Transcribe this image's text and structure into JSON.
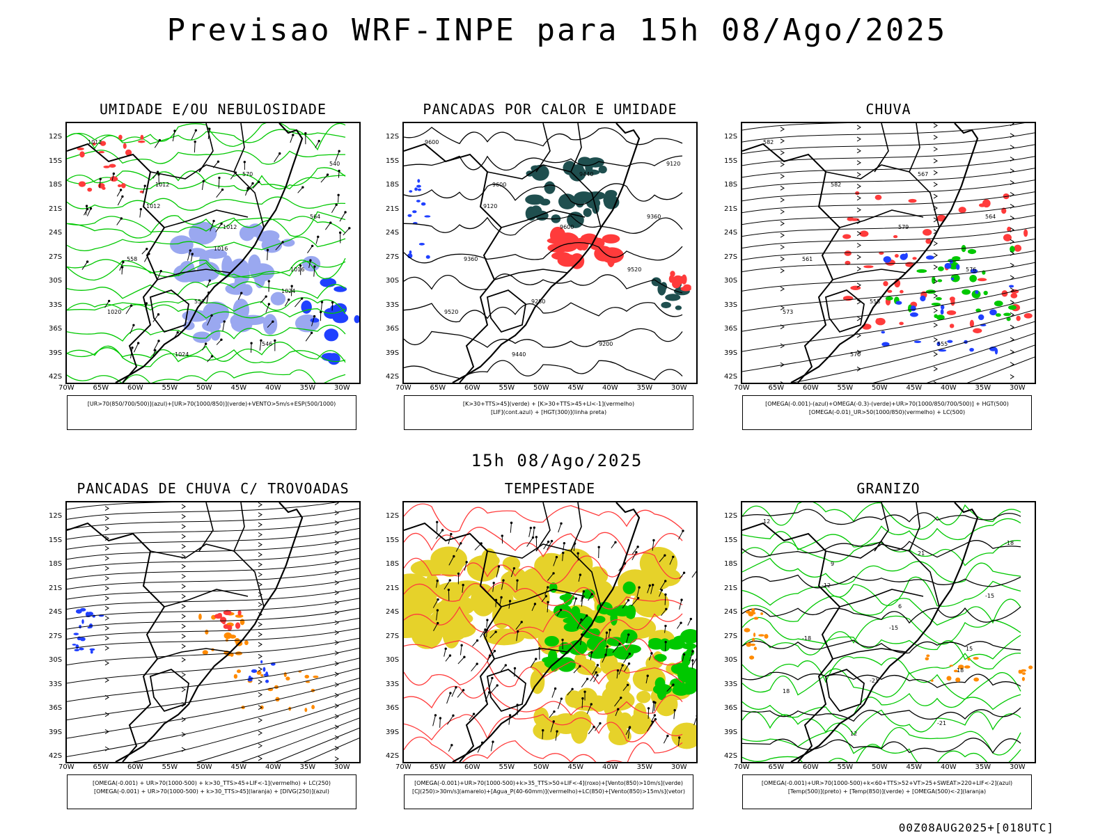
{
  "main_title": "Previsao WRF-INPE  para 15h 08/Ago/2025",
  "mid_title": "15h 08/Ago/2025",
  "footer_stamp": "00Z08AUG2025+[018UTC]",
  "lat_labels": [
    "12S",
    "15S",
    "18S",
    "21S",
    "24S",
    "27S",
    "30S",
    "33S",
    "36S",
    "39S",
    "42S"
  ],
  "lon_labels": [
    "70W",
    "65W",
    "60W",
    "55W",
    "50W",
    "45W",
    "40W",
    "35W",
    "30W"
  ],
  "panels": [
    {
      "title": "UMIDADE E/OU NEBULOSIDADE",
      "legend": [
        "[UR>70(850/700/500)](azul)+[UR>70(1000/850)](verde)+VENTO>5m/s+ESP(500/1000)"
      ],
      "contour_labels": [
        "1012",
        "1012",
        "1012",
        "1016",
        "1020",
        "1024",
        "570",
        "564",
        "558",
        "552",
        "546",
        "540",
        "1012",
        "1016",
        "1024"
      ]
    },
    {
      "title": "PANCADAS POR CALOR E UMIDADE",
      "legend": [
        "[K>30+TTS>45](verde) + [K>30+TTS>45+LI<-1](vermelho)",
        "[LIF](cont.azul) + [HGT(300)](linha preta)"
      ],
      "contour_labels": [
        "9600",
        "9600",
        "9600",
        "9520",
        "9520",
        "9440",
        "9440",
        "9360",
        "9360",
        "9280",
        "9200",
        "9120",
        "9120"
      ]
    },
    {
      "title": "CHUVA",
      "legend": [
        "[OMEGA(-0.001)-(azul)+OMEGA(-0.3)-(verde)+UR>70(1000/850/700/500)] + HGT(500)",
        "[OMEGA(-0.01)_UR>50(1000/850)(vermelho) + LC(500)"
      ],
      "contour_labels": [
        "582",
        "582",
        "579",
        "576",
        "573",
        "570",
        "567",
        "564",
        "561",
        "558",
        "555"
      ]
    },
    {
      "title": "PANCADAS DE CHUVA C/ TROVOADAS",
      "legend": [
        "[OMEGA(-0.001) + UR>70(1000-500) + k>30_TTS>45+LIF<-1](vermelho) + LC(250)",
        "[OMEGA(-0.001) + UR>70(1000-500) + k>30_TTS>45](laranja) + [DIVG(250)](azul)"
      ],
      "contour_labels": []
    },
    {
      "title": "TEMPESTADE",
      "legend": [
        "[OMEGA(-0.001)+UR>70(1000-500)+k>35_TTS>50+LIF<-4](roxo)+[Vento(850)>10m/s](verde)",
        "[CJ(250)>30m/s](amarelo)+[Agua_P(40-60mm)](vermelho)+LC(850)+[Vento(850)>15m/s](vetor)"
      ],
      "contour_labels": []
    },
    {
      "title": "GRANIZO",
      "legend": [
        "[OMEGA(-0.001)+UR>70(1000-500)+k<60+TTS>52+VT>25+SWEAT>220+LIF<-2](azul)",
        "[Temp(500)](preto) + [Temp(850)](verde) + [OMEGA(500)<-2](laranja)"
      ],
      "contour_labels": [
        "12",
        "9",
        "6",
        "15",
        "18",
        "12",
        "21",
        "-15",
        "-18",
        "-21",
        "-21",
        "-18",
        "-12",
        "-15",
        "18"
      ]
    }
  ],
  "colors": {
    "green": "#00c800",
    "red": "#ff3b3b",
    "blue": "#2040ff",
    "lightblue": "#9aa8f0",
    "darkteal": "#1f4f4f",
    "yellow": "#e6d22a",
    "orange": "#ff8a00"
  }
}
